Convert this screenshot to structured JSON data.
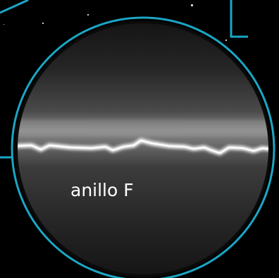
{
  "label": "anillo F"
}
